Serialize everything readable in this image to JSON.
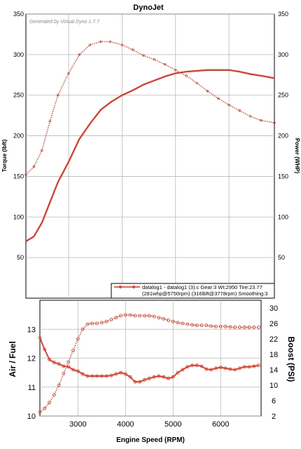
{
  "chart_data": [
    {
      "type": "line",
      "title": "DynoJet",
      "watermark": "Generated by Virtual Dyno 1.7.7",
      "xlabel": "Engine Speed (RPM)",
      "ylabel": "Torque (lbft)",
      "y2label": "Power (WHP)",
      "xlim": [
        2200,
        6850
      ],
      "ylim": [
        0,
        350
      ],
      "y2lim": [
        0,
        350
      ],
      "x_ticks": [
        3000,
        4000,
        5000,
        6000
      ],
      "y_tick_labels": [
        "50",
        "100",
        "150",
        "200",
        "250",
        "300",
        "350"
      ],
      "y2_tick_labels": [
        "50",
        "100",
        "150",
        "200",
        "250",
        "300",
        "350"
      ],
      "grid": true,
      "legend_position": "bottom-right",
      "legend_lines": [
        "datalog1 - datalog1 (3).c Gear:3 Wt:2950 Tire:23.77",
        "(281whp@5750rpm) (316lbft@3778rpm) Smoothing:3"
      ],
      "colors": {
        "power": "#e8321e",
        "torque": "#e8321e"
      },
      "series": [
        {
          "name": "",
          "style": "solid",
          "axis": "right",
          "x": [
            2200,
            2350,
            2500,
            2650,
            2800,
            3000,
            3200,
            3400,
            3600,
            3800,
            4000,
            4200,
            4400,
            4600,
            4800,
            5000,
            5200,
            5400,
            5600,
            5800,
            6000,
            6200,
            6400,
            6600,
            6850
          ],
          "y": [
            70,
            76,
            93,
            118,
            143,
            168,
            196,
            215,
            232,
            242,
            250,
            256,
            263,
            268,
            273,
            277,
            279,
            280,
            281,
            281,
            281,
            279,
            276,
            274,
            271
          ]
        },
        {
          "name": "",
          "style": "dotted",
          "axis": "left",
          "x": [
            2200,
            2350,
            2500,
            2650,
            2800,
            3000,
            3200,
            3400,
            3600,
            3778,
            4000,
            4200,
            4400,
            4600,
            4800,
            5000,
            5200,
            5400,
            5600,
            5800,
            6000,
            6200,
            6400,
            6600,
            6850
          ],
          "y": [
            152,
            162,
            182,
            218,
            250,
            277,
            300,
            312,
            316,
            316,
            312,
            306,
            299,
            294,
            288,
            281,
            274,
            265,
            255,
            246,
            238,
            231,
            224,
            219,
            216
          ]
        }
      ]
    },
    {
      "type": "line",
      "xlabel": "Engine Speed (RPM)",
      "ylabel": "Air / Fuel",
      "y2label": "Boost (PSI)",
      "xlim": [
        2200,
        6850
      ],
      "ylim": [
        10,
        14
      ],
      "y2lim": [
        2,
        32
      ],
      "x_tick_labels": [
        "3000",
        "4000",
        "5000",
        "6000"
      ],
      "y_tick_labels": [
        "10",
        "11",
        "12",
        "13"
      ],
      "y2_tick_labels": [
        "2",
        "6",
        "10",
        "14",
        "18",
        "22",
        "26",
        "30"
      ],
      "grid": true,
      "colors": {
        "afr": "#e8321e",
        "boost": "#e8321e"
      },
      "series": [
        {
          "name": "",
          "style": "solid-markers",
          "axis": "left",
          "x": [
            2200,
            2300,
            2400,
            2500,
            2600,
            2700,
            2800,
            2900,
            3000,
            3100,
            3200,
            3300,
            3400,
            3500,
            3600,
            3700,
            3800,
            3900,
            4000,
            4100,
            4200,
            4300,
            4400,
            4500,
            4600,
            4700,
            4800,
            4900,
            5000,
            5100,
            5200,
            5300,
            5400,
            5500,
            5600,
            5700,
            5800,
            5900,
            6000,
            6100,
            6200,
            6300,
            6400,
            6500,
            6600,
            6700,
            6800
          ],
          "y": [
            12.7,
            12.3,
            11.95,
            11.85,
            11.8,
            11.72,
            11.7,
            11.6,
            11.55,
            11.45,
            11.38,
            11.38,
            11.38,
            11.38,
            11.38,
            11.4,
            11.45,
            11.5,
            11.45,
            11.35,
            11.18,
            11.18,
            11.25,
            11.3,
            11.35,
            11.38,
            11.35,
            11.3,
            11.35,
            11.5,
            11.6,
            11.7,
            11.75,
            11.75,
            11.72,
            11.62,
            11.6,
            11.65,
            11.68,
            11.65,
            11.62,
            11.6,
            11.65,
            11.7,
            11.7,
            11.72,
            11.75
          ]
        },
        {
          "name": "",
          "style": "dotted-markers",
          "axis": "right",
          "x": [
            2200,
            2300,
            2400,
            2500,
            2600,
            2700,
            2800,
            2900,
            3000,
            3100,
            3200,
            3300,
            3400,
            3500,
            3600,
            3700,
            3800,
            3900,
            4000,
            4100,
            4200,
            4300,
            4400,
            4500,
            4600,
            4700,
            4800,
            4900,
            5000,
            5100,
            5200,
            5300,
            5400,
            5500,
            5600,
            5700,
            5800,
            5900,
            6000,
            6100,
            6200,
            6300,
            6400,
            6500,
            6600,
            6700,
            6800
          ],
          "y": [
            3,
            4,
            5.5,
            7.5,
            10,
            13,
            16,
            19,
            22,
            24.5,
            25.8,
            26,
            26,
            26.2,
            26.5,
            27,
            27.5,
            28,
            28.2,
            28.2,
            28,
            28,
            28,
            28,
            27.8,
            27.5,
            27.2,
            26.8,
            26.5,
            26.2,
            26,
            25.8,
            25.6,
            25.5,
            25.5,
            25.5,
            25.3,
            25.2,
            25.2,
            25.2,
            25.1,
            25,
            25,
            25,
            25,
            25,
            25
          ]
        }
      ]
    }
  ]
}
